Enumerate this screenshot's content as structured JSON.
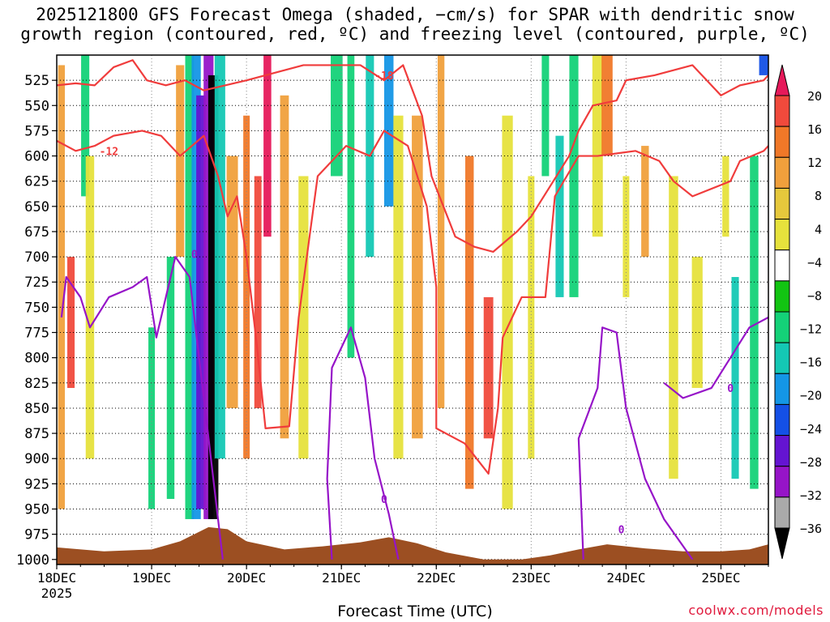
{
  "title": {
    "line1": "2025121800 GFS Forecast Omega (shaded, −cm/s) for SPAR with dendritic snow",
    "line2": "growth region (contoured, red, ºC) and freezing level (contoured, purple, ºC)"
  },
  "credit": "coolwx.com/models",
  "chart_data": {
    "type": "heatmap",
    "xlabel": "Forecast Time (UTC)",
    "ylabel": "",
    "x_ticks": [
      "18DEC",
      "19DEC",
      "20DEC",
      "21DEC",
      "22DEC",
      "23DEC",
      "24DEC",
      "25DEC"
    ],
    "x_year": "2025",
    "x_range_days": [
      18,
      25.5
    ],
    "y_ticks": [
      525,
      550,
      575,
      600,
      625,
      650,
      675,
      700,
      725,
      750,
      775,
      800,
      825,
      850,
      875,
      900,
      925,
      950,
      975,
      1000
    ],
    "y_range_hpa": [
      500,
      1005
    ],
    "colorbar": {
      "labels": [
        "20",
        "16",
        "12",
        "8",
        "4",
        "−4",
        "−8",
        "−12",
        "−16",
        "−20",
        "−24",
        "−28",
        "−32",
        "−36"
      ],
      "colors": [
        "#e6195a",
        "#f04a3c",
        "#f07828",
        "#f0a03c",
        "#e6c83c",
        "#e6e23c",
        "#ffffff",
        "#12c412",
        "#14d278",
        "#14c8b4",
        "#1496e6",
        "#1450e6",
        "#6414d2",
        "#9614c8",
        "#aaaaaa",
        "#000000"
      ]
    },
    "omega_bands": [
      {
        "day": 18.05,
        "p_top": 510,
        "p_bot": 950,
        "value": 8
      },
      {
        "day": 18.15,
        "p_top": 700,
        "p_bot": 830,
        "value": 16
      },
      {
        "day": 18.3,
        "p_top": 500,
        "p_bot": 640,
        "value": -8
      },
      {
        "day": 18.35,
        "p_top": 600,
        "p_bot": 900,
        "value": 4
      },
      {
        "day": 19.0,
        "p_top": 770,
        "p_bot": 950,
        "value": -8
      },
      {
        "day": 19.2,
        "p_top": 700,
        "p_bot": 940,
        "value": -8
      },
      {
        "day": 19.3,
        "p_top": 510,
        "p_bot": 700,
        "value": 8
      },
      {
        "day": 19.4,
        "p_top": 500,
        "p_bot": 960,
        "value": -8
      },
      {
        "day": 19.47,
        "p_top": 500,
        "p_bot": 960,
        "value": -16
      },
      {
        "day": 19.52,
        "p_top": 540,
        "p_bot": 950,
        "value": -24
      },
      {
        "day": 19.6,
        "p_top": 500,
        "p_bot": 960,
        "value": -28
      },
      {
        "day": 19.65,
        "p_top": 520,
        "p_bot": 960,
        "value": -36
      },
      {
        "day": 19.72,
        "p_top": 500,
        "p_bot": 900,
        "value": -12
      },
      {
        "day": 19.85,
        "p_top": 600,
        "p_bot": 850,
        "value": 8
      },
      {
        "day": 20.0,
        "p_top": 560,
        "p_bot": 900,
        "value": 12
      },
      {
        "day": 20.12,
        "p_top": 620,
        "p_bot": 850,
        "value": 16
      },
      {
        "day": 20.22,
        "p_top": 500,
        "p_bot": 680,
        "value": 20
      },
      {
        "day": 20.4,
        "p_top": 540,
        "p_bot": 880,
        "value": 8
      },
      {
        "day": 20.6,
        "p_top": 620,
        "p_bot": 900,
        "value": 4
      },
      {
        "day": 20.95,
        "p_top": 500,
        "p_bot": 620,
        "value": -8
      },
      {
        "day": 21.1,
        "p_top": 500,
        "p_bot": 800,
        "value": -8
      },
      {
        "day": 21.3,
        "p_top": 500,
        "p_bot": 700,
        "value": -12
      },
      {
        "day": 21.5,
        "p_top": 500,
        "p_bot": 650,
        "value": -16
      },
      {
        "day": 21.6,
        "p_top": 560,
        "p_bot": 900,
        "value": 4
      },
      {
        "day": 21.8,
        "p_top": 560,
        "p_bot": 880,
        "value": 8
      },
      {
        "day": 22.05,
        "p_top": 500,
        "p_bot": 850,
        "value": 8
      },
      {
        "day": 22.35,
        "p_top": 600,
        "p_bot": 930,
        "value": 12
      },
      {
        "day": 22.55,
        "p_top": 740,
        "p_bot": 880,
        "value": 16
      },
      {
        "day": 22.75,
        "p_top": 560,
        "p_bot": 950,
        "value": 4
      },
      {
        "day": 23.0,
        "p_top": 620,
        "p_bot": 900,
        "value": 4
      },
      {
        "day": 23.15,
        "p_top": 500,
        "p_bot": 620,
        "value": -8
      },
      {
        "day": 23.3,
        "p_top": 580,
        "p_bot": 740,
        "value": -12
      },
      {
        "day": 23.45,
        "p_top": 500,
        "p_bot": 740,
        "value": -8
      },
      {
        "day": 23.7,
        "p_top": 500,
        "p_bot": 680,
        "value": 4
      },
      {
        "day": 23.8,
        "p_top": 500,
        "p_bot": 600,
        "value": 12
      },
      {
        "day": 24.0,
        "p_top": 620,
        "p_bot": 740,
        "value": 4
      },
      {
        "day": 24.2,
        "p_top": 590,
        "p_bot": 700,
        "value": 8
      },
      {
        "day": 24.5,
        "p_top": 620,
        "p_bot": 920,
        "value": 4
      },
      {
        "day": 24.75,
        "p_top": 700,
        "p_bot": 830,
        "value": 4
      },
      {
        "day": 25.05,
        "p_top": 600,
        "p_bot": 680,
        "value": 4
      },
      {
        "day": 25.15,
        "p_top": 720,
        "p_bot": 920,
        "value": -12
      },
      {
        "day": 25.35,
        "p_top": 600,
        "p_bot": 930,
        "value": -8
      },
      {
        "day": 25.45,
        "p_top": 500,
        "p_bot": 520,
        "value": -20
      }
    ],
    "dgz_contours": [
      {
        "label": "-12",
        "points": [
          [
            18,
            585
          ],
          [
            18.2,
            595
          ],
          [
            18.4,
            590
          ],
          [
            18.6,
            580
          ],
          [
            18.9,
            575
          ],
          [
            19.1,
            580
          ],
          [
            19.3,
            600
          ],
          [
            19.55,
            580
          ],
          [
            19.7,
            620
          ],
          [
            19.8,
            660
          ],
          [
            19.9,
            640
          ],
          [
            20.0,
            700
          ],
          [
            20.1,
            780
          ],
          [
            20.2,
            870
          ],
          [
            20.45,
            868
          ],
          [
            20.55,
            760
          ],
          [
            20.75,
            620
          ],
          [
            21.05,
            590
          ],
          [
            21.3,
            600
          ],
          [
            21.45,
            575
          ],
          [
            21.7,
            590
          ],
          [
            21.9,
            650
          ],
          [
            22.0,
            730
          ],
          [
            22.0,
            870
          ],
          [
            22.3,
            885
          ],
          [
            22.55,
            915
          ],
          [
            22.65,
            850
          ],
          [
            22.7,
            780
          ],
          [
            22.9,
            740
          ],
          [
            23.15,
            740
          ],
          [
            23.25,
            640
          ],
          [
            23.5,
            600
          ],
          [
            23.7,
            600
          ],
          [
            24.1,
            595
          ],
          [
            24.35,
            605
          ],
          [
            24.5,
            625
          ],
          [
            24.7,
            640
          ],
          [
            25.1,
            625
          ],
          [
            25.2,
            605
          ],
          [
            25.45,
            595
          ],
          [
            25.5,
            590
          ]
        ],
        "label_at": [
          18.55,
          595
        ]
      },
      {
        "label": "-18",
        "points": [
          [
            18,
            530
          ],
          [
            18.2,
            528
          ],
          [
            18.4,
            530
          ],
          [
            18.6,
            512
          ],
          [
            18.8,
            505
          ],
          [
            18.95,
            525
          ],
          [
            19.15,
            530
          ],
          [
            19.35,
            525
          ],
          [
            19.55,
            535
          ],
          [
            20.0,
            525
          ],
          [
            20.6,
            510
          ],
          [
            21.2,
            510
          ],
          [
            21.45,
            525
          ],
          [
            21.65,
            510
          ],
          [
            21.85,
            560
          ],
          [
            21.95,
            620
          ],
          [
            22.2,
            680
          ],
          [
            22.4,
            690
          ],
          [
            22.6,
            695
          ],
          [
            22.85,
            675
          ],
          [
            23.0,
            660
          ],
          [
            23.2,
            630
          ],
          [
            23.4,
            600
          ],
          [
            23.5,
            575
          ],
          [
            23.65,
            550
          ],
          [
            23.9,
            545
          ],
          [
            24.0,
            525
          ],
          [
            24.3,
            520
          ],
          [
            24.5,
            515
          ],
          [
            24.7,
            510
          ],
          [
            24.85,
            525
          ],
          [
            25.0,
            540
          ],
          [
            25.2,
            530
          ],
          [
            25.45,
            525
          ],
          [
            25.5,
            520
          ]
        ],
        "label_at": [
          21.45,
          520
        ]
      }
    ],
    "freezing_contours": [
      {
        "label": "0",
        "points": [
          [
            18.05,
            760
          ],
          [
            18.1,
            720
          ],
          [
            18.25,
            740
          ],
          [
            18.35,
            770
          ],
          [
            18.55,
            740
          ],
          [
            18.8,
            730
          ],
          [
            18.95,
            720
          ],
          [
            19.05,
            780
          ],
          [
            19.25,
            700
          ],
          [
            19.4,
            720
          ],
          [
            19.55,
            840
          ],
          [
            19.65,
            920
          ],
          [
            19.75,
            1000
          ]
        ],
        "label_at": [
          19.45,
          697
        ]
      },
      {
        "label": "0",
        "points": [
          [
            20.9,
            1000
          ],
          [
            20.85,
            920
          ],
          [
            20.9,
            810
          ],
          [
            21.1,
            770
          ],
          [
            21.25,
            820
          ],
          [
            21.35,
            900
          ],
          [
            21.5,
            955
          ],
          [
            21.6,
            1000
          ]
        ],
        "label_at": [
          21.45,
          940
        ]
      },
      {
        "label": "0",
        "points": [
          [
            23.55,
            1000
          ],
          [
            23.5,
            880
          ],
          [
            23.7,
            830
          ],
          [
            23.75,
            770
          ],
          [
            23.9,
            775
          ],
          [
            24.0,
            850
          ],
          [
            24.2,
            920
          ],
          [
            24.4,
            960
          ],
          [
            24.7,
            1000
          ]
        ],
        "label_at": [
          23.95,
          970
        ]
      },
      {
        "label": "0",
        "points": [
          [
            24.4,
            825
          ],
          [
            24.6,
            840
          ],
          [
            24.9,
            830
          ],
          [
            25.1,
            800
          ],
          [
            25.3,
            770
          ],
          [
            25.5,
            760
          ]
        ],
        "label_at": [
          25.1,
          830
        ]
      }
    ],
    "terrain_pressure_hpa": [
      [
        18.0,
        988
      ],
      [
        18.5,
        992
      ],
      [
        19.0,
        990
      ],
      [
        19.3,
        982
      ],
      [
        19.6,
        968
      ],
      [
        19.8,
        970
      ],
      [
        20.0,
        982
      ],
      [
        20.4,
        990
      ],
      [
        20.8,
        987
      ],
      [
        21.2,
        983
      ],
      [
        21.5,
        978
      ],
      [
        21.8,
        984
      ],
      [
        22.1,
        993
      ],
      [
        22.5,
        1000
      ],
      [
        22.9,
        1000
      ],
      [
        23.2,
        996
      ],
      [
        23.5,
        990
      ],
      [
        23.8,
        985
      ],
      [
        24.2,
        989
      ],
      [
        24.6,
        992
      ],
      [
        25.0,
        992
      ],
      [
        25.3,
        990
      ],
      [
        25.5,
        985
      ]
    ]
  }
}
